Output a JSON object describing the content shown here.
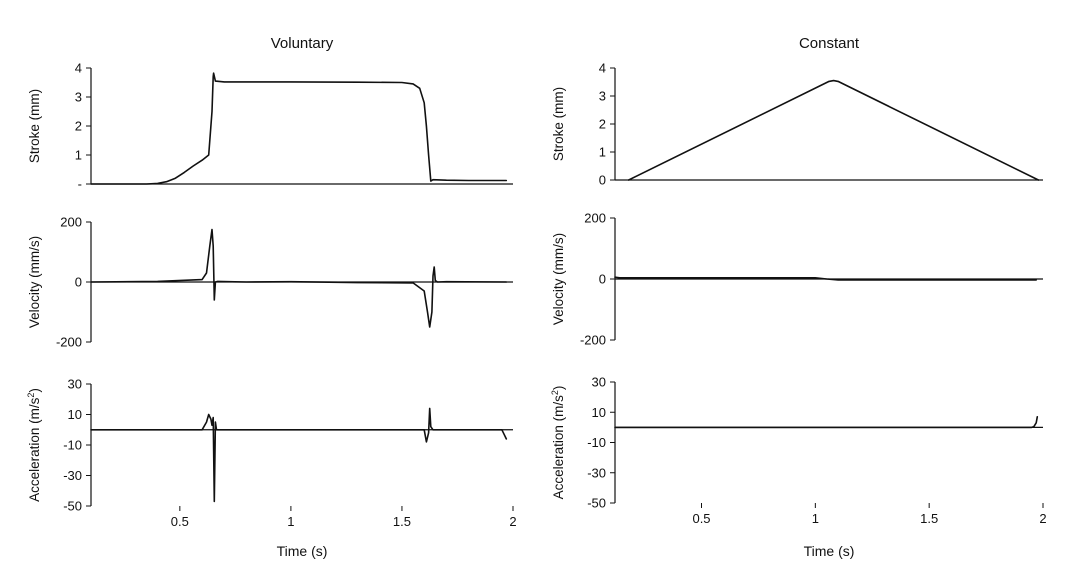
{
  "chart_data": [
    {
      "type": "line",
      "column": "left",
      "title": "Voluntary",
      "ylabel": "Stroke (mm)",
      "xlabel": "",
      "xlim": [
        0.1,
        2.0
      ],
      "ylim": [
        0,
        4
      ],
      "yticks": [
        0,
        1,
        2,
        3,
        4
      ],
      "ytick_labels": [
        "-",
        "1",
        "2",
        "3",
        "4"
      ],
      "xticks": [],
      "series": [
        {
          "x": [
            0.1,
            0.35,
            0.4,
            0.44,
            0.48,
            0.52,
            0.56,
            0.6,
            0.63,
            0.645,
            0.65,
            0.652,
            0.66,
            0.7,
            1.0,
            1.3,
            1.5,
            1.55,
            1.58,
            1.6,
            1.61,
            1.62,
            1.63,
            1.64,
            1.7,
            1.8,
            1.97
          ],
          "y": [
            0.0,
            0.0,
            0.02,
            0.08,
            0.2,
            0.4,
            0.62,
            0.82,
            1.0,
            2.5,
            3.7,
            3.82,
            3.55,
            3.52,
            3.52,
            3.51,
            3.5,
            3.45,
            3.3,
            2.8,
            2.0,
            1.0,
            0.1,
            0.15,
            0.13,
            0.12,
            0.12
          ]
        }
      ]
    },
    {
      "type": "line",
      "column": "left",
      "title": "",
      "ylabel": "Velocity (mm/s)",
      "xlabel": "",
      "xlim": [
        0.1,
        2.0
      ],
      "ylim": [
        -200,
        200
      ],
      "yticks": [
        -200,
        0,
        200
      ],
      "ytick_labels": [
        "-200",
        "0",
        "200"
      ],
      "xticks": [],
      "series": [
        {
          "x": [
            0.1,
            0.4,
            0.6,
            0.62,
            0.635,
            0.645,
            0.65,
            0.655,
            0.66,
            0.67,
            0.8,
            1.0,
            1.3,
            1.55,
            1.6,
            1.615,
            1.625,
            1.635,
            1.64,
            1.645,
            1.65,
            1.66,
            1.7,
            1.97
          ],
          "y": [
            0,
            2,
            8,
            30,
            120,
            175,
            120,
            -60,
            0,
            2,
            0,
            1,
            -2,
            -3,
            -30,
            -100,
            -150,
            -100,
            20,
            50,
            5,
            0,
            1,
            0
          ]
        }
      ]
    },
    {
      "type": "line",
      "column": "left",
      "title": "",
      "ylabel": "Acceleration (m/s2)",
      "ylabel_text": "Acceleration (m/s",
      "ylabel_sup": "2",
      "ylabel_close": ")",
      "xlabel": "Time (s)",
      "xlim": [
        0.1,
        2.0
      ],
      "ylim": [
        -50,
        30
      ],
      "yticks": [
        -50,
        -30,
        -10,
        10,
        30
      ],
      "ytick_labels": [
        "-50",
        "-30",
        "-10",
        "10",
        "30"
      ],
      "xticks": [
        0.5,
        1,
        1.5,
        2
      ],
      "xtick_labels": [
        "0.5",
        "1",
        "1.5",
        "2"
      ],
      "series": [
        {
          "x": [
            0.1,
            0.4,
            0.6,
            0.62,
            0.63,
            0.64,
            0.645,
            0.65,
            0.655,
            0.66,
            0.665,
            0.67,
            0.8,
            1.2,
            1.5,
            1.6,
            1.61,
            1.62,
            1.625,
            1.63,
            1.64,
            1.65,
            1.7,
            1.95,
            1.96,
            1.97
          ],
          "y": [
            0,
            0,
            0,
            5,
            10,
            7,
            3,
            8,
            -47,
            5,
            0,
            0,
            0,
            0,
            0,
            0,
            -8,
            -2,
            14,
            2,
            0,
            0,
            0,
            0,
            -3,
            -6
          ]
        }
      ]
    },
    {
      "type": "line",
      "column": "right",
      "title": "Constant",
      "ylabel": "Stroke (mm)",
      "xlabel": "",
      "xlim": [
        0.12,
        2.0
      ],
      "ylim": [
        0,
        4
      ],
      "yticks": [
        0,
        1,
        2,
        3,
        4
      ],
      "ytick_labels": [
        "0",
        "1",
        "2",
        "3",
        "4"
      ],
      "xticks": [],
      "series": [
        {
          "x": [
            0.18,
            1.06,
            1.08,
            1.1,
            1.98
          ],
          "y": [
            0.0,
            3.52,
            3.55,
            3.52,
            0.0
          ]
        }
      ]
    },
    {
      "type": "line",
      "column": "right",
      "title": "",
      "ylabel": "Velocity (mm/s)",
      "xlabel": "",
      "xlim": [
        0.12,
        2.0
      ],
      "ylim": [
        -200,
        200
      ],
      "yticks": [
        -200,
        0,
        200
      ],
      "ytick_labels": [
        "-200",
        "0",
        "200"
      ],
      "xticks": [],
      "series": [
        {
          "x": [
            0.12,
            0.14,
            0.3,
            0.7,
            1.0,
            1.05,
            1.1,
            1.5,
            1.97
          ],
          "y": [
            6,
            4,
            4,
            4,
            4,
            0,
            -3,
            -3,
            -3
          ]
        }
      ]
    },
    {
      "type": "line",
      "column": "right",
      "title": "",
      "ylabel": "Acceleration (m/s2)",
      "ylabel_text": "Acceleration (m/s",
      "ylabel_sup": "2",
      "ylabel_close": ")",
      "xlabel": "Time (s)",
      "xlim": [
        0.12,
        2.0
      ],
      "ylim": [
        -50,
        30
      ],
      "yticks": [
        -50,
        -30,
        -10,
        10,
        30
      ],
      "ytick_labels": [
        "-50",
        "-30",
        "-10",
        "10",
        "30"
      ],
      "xticks": [
        0.5,
        1,
        1.5,
        2
      ],
      "xtick_labels": [
        "0.5",
        "1",
        "1.5",
        "2"
      ],
      "series": [
        {
          "x": [
            0.12,
            0.5,
            1.0,
            1.5,
            1.95,
            1.96,
            1.97,
            1.975
          ],
          "y": [
            0,
            0,
            0,
            0,
            0,
            0.5,
            3,
            7
          ]
        }
      ]
    }
  ]
}
